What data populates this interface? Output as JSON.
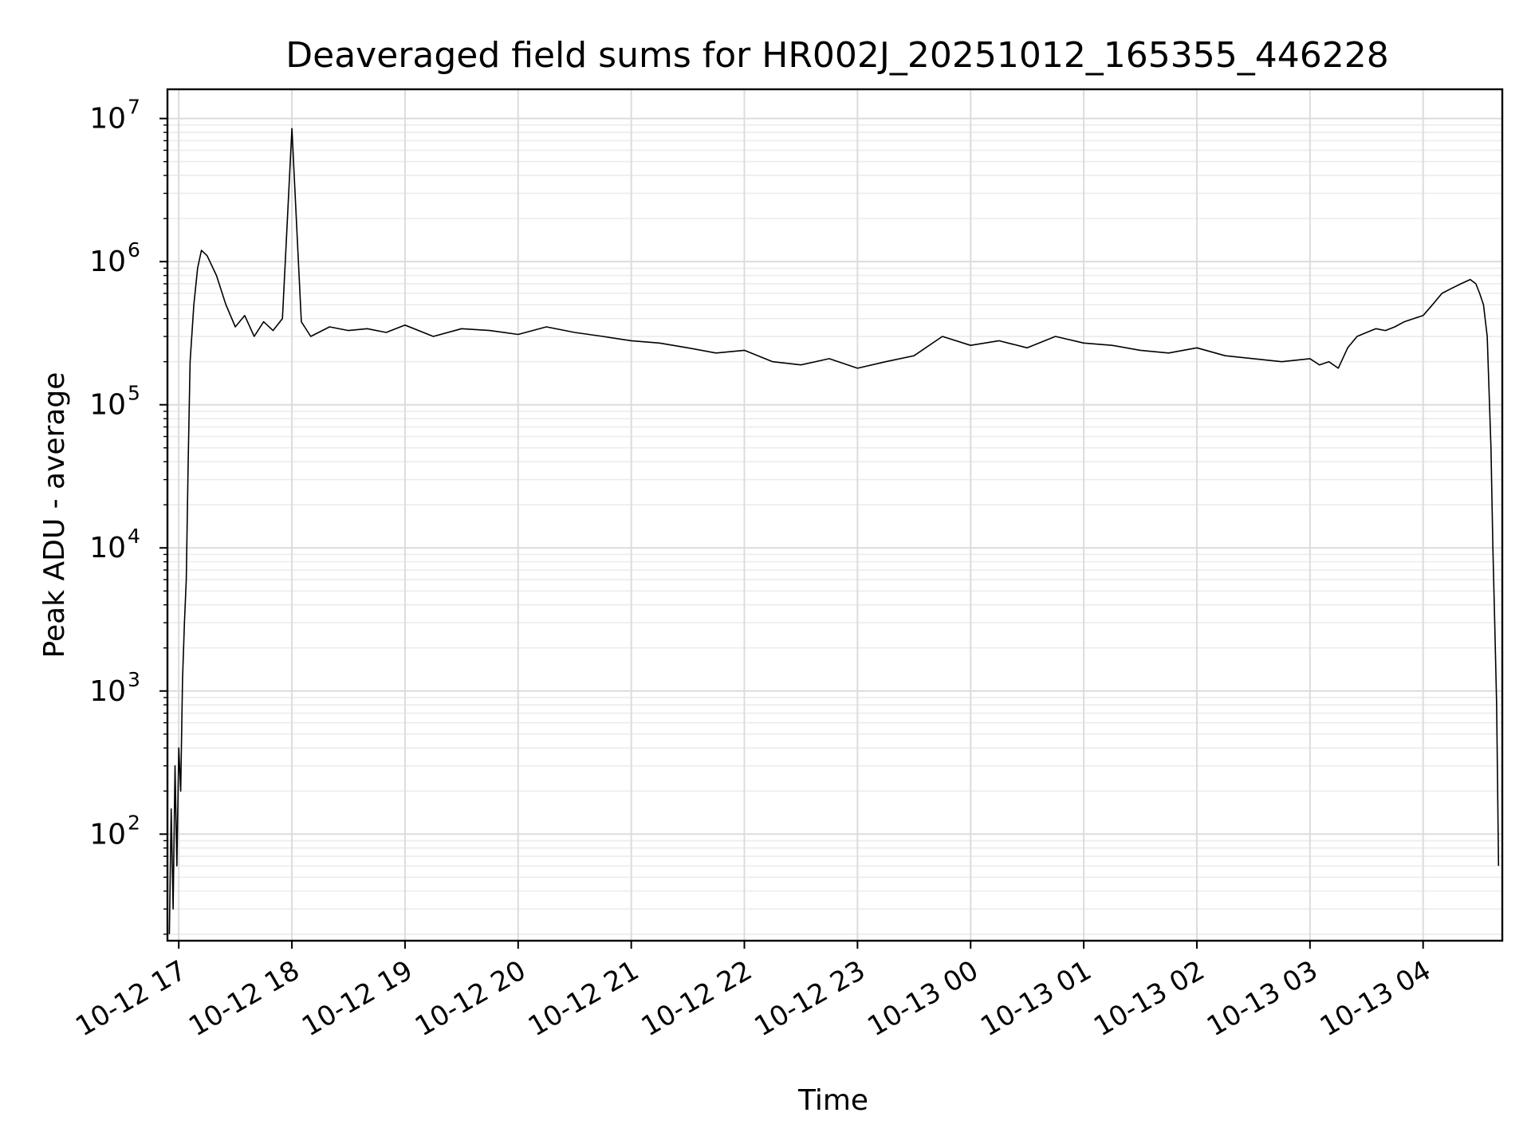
{
  "chart_data": {
    "type": "line",
    "title": "Deaveraged field sums for HR002J_20251012_165355_446228",
    "xlabel": "Time",
    "ylabel": "Peak ADU - average",
    "yscale": "log",
    "ylim": [
      18,
      16000000
    ],
    "xlim": [
      "2025-10-12 16:54",
      "2025-10-13 04:42"
    ],
    "grid": true,
    "grid_minor": true,
    "legend": "none",
    "line_color": "#000000",
    "x_ticks": [
      {
        "label": "10-12 17",
        "time": "2025-10-12 17:00"
      },
      {
        "label": "10-12 18",
        "time": "2025-10-12 18:00"
      },
      {
        "label": "10-12 19",
        "time": "2025-10-12 19:00"
      },
      {
        "label": "10-12 20",
        "time": "2025-10-12 20:00"
      },
      {
        "label": "10-12 21",
        "time": "2025-10-12 21:00"
      },
      {
        "label": "10-12 22",
        "time": "2025-10-12 22:00"
      },
      {
        "label": "10-12 23",
        "time": "2025-10-12 23:00"
      },
      {
        "label": "10-13 00",
        "time": "2025-10-13 00:00"
      },
      {
        "label": "10-13 01",
        "time": "2025-10-13 01:00"
      },
      {
        "label": "10-13 02",
        "time": "2025-10-13 02:00"
      },
      {
        "label": "10-13 03",
        "time": "2025-10-13 03:00"
      },
      {
        "label": "10-13 04",
        "time": "2025-10-13 04:00"
      }
    ],
    "y_ticks": [
      {
        "base": "10",
        "exp": "2",
        "value": 100
      },
      {
        "base": "10",
        "exp": "3",
        "value": 1000
      },
      {
        "base": "10",
        "exp": "4",
        "value": 10000
      },
      {
        "base": "10",
        "exp": "5",
        "value": 100000
      },
      {
        "base": "10",
        "exp": "6",
        "value": 1000000
      },
      {
        "base": "10",
        "exp": "7",
        "value": 10000000
      }
    ],
    "series": [
      {
        "x": [
          "2025-10-12 16:55",
          "2025-10-12 16:56",
          "2025-10-12 16:57",
          "2025-10-12 16:58",
          "2025-10-12 16:59",
          "2025-10-12 17:00",
          "2025-10-12 17:01",
          "2025-10-12 17:02",
          "2025-10-12 17:03",
          "2025-10-12 17:04",
          "2025-10-12 17:05",
          "2025-10-12 17:06",
          "2025-10-12 17:08",
          "2025-10-12 17:10",
          "2025-10-12 17:12",
          "2025-10-12 17:15",
          "2025-10-12 17:20",
          "2025-10-12 17:25",
          "2025-10-12 17:30",
          "2025-10-12 17:35",
          "2025-10-12 17:40",
          "2025-10-12 17:45",
          "2025-10-12 17:50",
          "2025-10-12 17:55",
          "2025-10-12 18:00",
          "2025-10-12 18:05",
          "2025-10-12 18:10",
          "2025-10-12 18:20",
          "2025-10-12 18:30",
          "2025-10-12 18:40",
          "2025-10-12 18:50",
          "2025-10-12 19:00",
          "2025-10-12 19:15",
          "2025-10-12 19:30",
          "2025-10-12 19:45",
          "2025-10-12 20:00",
          "2025-10-12 20:15",
          "2025-10-12 20:30",
          "2025-10-12 20:45",
          "2025-10-12 21:00",
          "2025-10-12 21:15",
          "2025-10-12 21:30",
          "2025-10-12 21:45",
          "2025-10-12 22:00",
          "2025-10-12 22:15",
          "2025-10-12 22:30",
          "2025-10-12 22:45",
          "2025-10-12 23:00",
          "2025-10-12 23:15",
          "2025-10-12 23:30",
          "2025-10-12 23:45",
          "2025-10-13 00:00",
          "2025-10-13 00:15",
          "2025-10-13 00:30",
          "2025-10-13 00:45",
          "2025-10-13 01:00",
          "2025-10-13 01:15",
          "2025-10-13 01:30",
          "2025-10-13 01:45",
          "2025-10-13 02:00",
          "2025-10-13 02:15",
          "2025-10-13 02:30",
          "2025-10-13 02:45",
          "2025-10-13 03:00",
          "2025-10-13 03:05",
          "2025-10-13 03:10",
          "2025-10-13 03:15",
          "2025-10-13 03:20",
          "2025-10-13 03:25",
          "2025-10-13 03:30",
          "2025-10-13 03:35",
          "2025-10-13 03:40",
          "2025-10-13 03:45",
          "2025-10-13 03:50",
          "2025-10-13 03:55",
          "2025-10-13 04:00",
          "2025-10-13 04:05",
          "2025-10-13 04:10",
          "2025-10-13 04:15",
          "2025-10-13 04:20",
          "2025-10-13 04:25",
          "2025-10-13 04:28",
          "2025-10-13 04:30",
          "2025-10-13 04:32",
          "2025-10-13 04:34",
          "2025-10-13 04:36",
          "2025-10-13 04:37",
          "2025-10-13 04:38",
          "2025-10-13 04:39",
          "2025-10-13 04:40"
        ],
        "y": [
          20,
          150,
          30,
          300,
          60,
          400,
          200,
          1200,
          3000,
          6000,
          40000,
          200000,
          500000,
          900000,
          1200000,
          1100000,
          800000,
          500000,
          350000,
          420000,
          300000,
          380000,
          330000,
          400000,
          8500000,
          380000,
          300000,
          350000,
          330000,
          340000,
          320000,
          360000,
          300000,
          340000,
          330000,
          310000,
          350000,
          320000,
          300000,
          280000,
          270000,
          250000,
          230000,
          240000,
          200000,
          190000,
          210000,
          180000,
          200000,
          220000,
          300000,
          260000,
          280000,
          250000,
          300000,
          270000,
          260000,
          240000,
          230000,
          250000,
          220000,
          210000,
          200000,
          210000,
          190000,
          200000,
          180000,
          250000,
          300000,
          320000,
          340000,
          330000,
          350000,
          380000,
          400000,
          420000,
          500000,
          600000,
          650000,
          700000,
          750000,
          700000,
          600000,
          500000,
          300000,
          50000,
          10000,
          3000,
          800,
          60
        ]
      }
    ]
  }
}
